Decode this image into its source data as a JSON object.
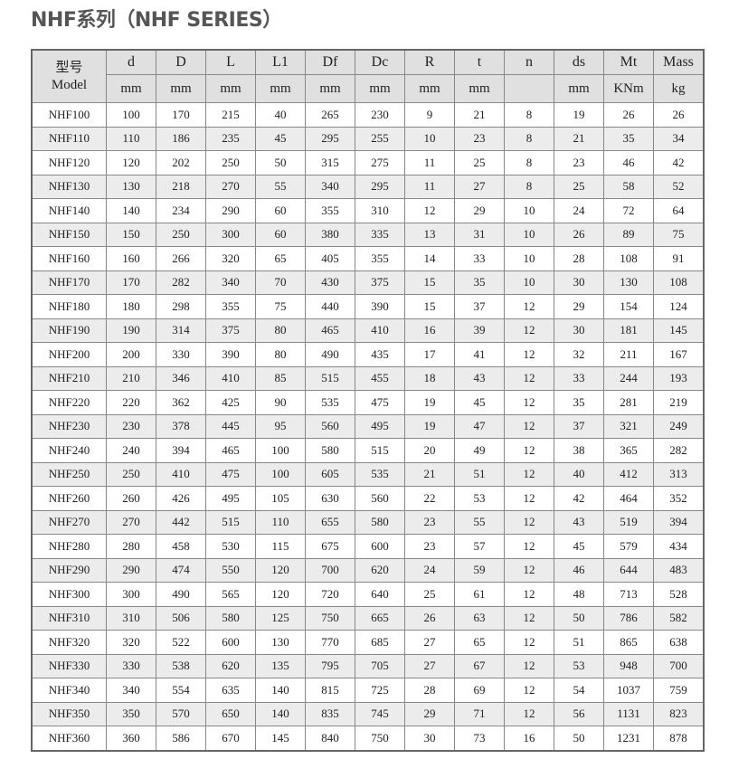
{
  "title": "NHF系列（NHF SERIES）",
  "table": {
    "model_header_cn": "型号",
    "model_header_en": "Model",
    "columns": [
      "d",
      "D",
      "L",
      "L1",
      "Df",
      "Dc",
      "R",
      "t",
      "n",
      "ds",
      "Mt",
      "Mass"
    ],
    "units": [
      "mm",
      "mm",
      "mm",
      "mm",
      "mm",
      "mm",
      "mm",
      "mm",
      "",
      "mm",
      "KNm",
      "kg"
    ],
    "rows": [
      [
        "NHF100",
        "100",
        "170",
        "215",
        "40",
        "265",
        "230",
        "9",
        "21",
        "8",
        "19",
        "26",
        "26"
      ],
      [
        "NHF110",
        "110",
        "186",
        "235",
        "45",
        "295",
        "255",
        "10",
        "23",
        "8",
        "21",
        "35",
        "34"
      ],
      [
        "NHF120",
        "120",
        "202",
        "250",
        "50",
        "315",
        "275",
        "11",
        "25",
        "8",
        "23",
        "46",
        "42"
      ],
      [
        "NHF130",
        "130",
        "218",
        "270",
        "55",
        "340",
        "295",
        "11",
        "27",
        "8",
        "25",
        "58",
        "52"
      ],
      [
        "NHF140",
        "140",
        "234",
        "290",
        "60",
        "355",
        "310",
        "12",
        "29",
        "10",
        "24",
        "72",
        "64"
      ],
      [
        "NHF150",
        "150",
        "250",
        "300",
        "60",
        "380",
        "335",
        "13",
        "31",
        "10",
        "26",
        "89",
        "75"
      ],
      [
        "NHF160",
        "160",
        "266",
        "320",
        "65",
        "405",
        "355",
        "14",
        "33",
        "10",
        "28",
        "108",
        "91"
      ],
      [
        "NHF170",
        "170",
        "282",
        "340",
        "70",
        "430",
        "375",
        "15",
        "35",
        "10",
        "30",
        "130",
        "108"
      ],
      [
        "NHF180",
        "180",
        "298",
        "355",
        "75",
        "440",
        "390",
        "15",
        "37",
        "12",
        "29",
        "154",
        "124"
      ],
      [
        "NHF190",
        "190",
        "314",
        "375",
        "80",
        "465",
        "410",
        "16",
        "39",
        "12",
        "30",
        "181",
        "145"
      ],
      [
        "NHF200",
        "200",
        "330",
        "390",
        "80",
        "490",
        "435",
        "17",
        "41",
        "12",
        "32",
        "211",
        "167"
      ],
      [
        "NHF210",
        "210",
        "346",
        "410",
        "85",
        "515",
        "455",
        "18",
        "43",
        "12",
        "33",
        "244",
        "193"
      ],
      [
        "NHF220",
        "220",
        "362",
        "425",
        "90",
        "535",
        "475",
        "19",
        "45",
        "12",
        "35",
        "281",
        "219"
      ],
      [
        "NHF230",
        "230",
        "378",
        "445",
        "95",
        "560",
        "495",
        "19",
        "47",
        "12",
        "37",
        "321",
        "249"
      ],
      [
        "NHF240",
        "240",
        "394",
        "465",
        "100",
        "580",
        "515",
        "20",
        "49",
        "12",
        "38",
        "365",
        "282"
      ],
      [
        "NHF250",
        "250",
        "410",
        "475",
        "100",
        "605",
        "535",
        "21",
        "51",
        "12",
        "40",
        "412",
        "313"
      ],
      [
        "NHF260",
        "260",
        "426",
        "495",
        "105",
        "630",
        "560",
        "22",
        "53",
        "12",
        "42",
        "464",
        "352"
      ],
      [
        "NHF270",
        "270",
        "442",
        "515",
        "110",
        "655",
        "580",
        "23",
        "55",
        "12",
        "43",
        "519",
        "394"
      ],
      [
        "NHF280",
        "280",
        "458",
        "530",
        "115",
        "675",
        "600",
        "23",
        "57",
        "12",
        "45",
        "579",
        "434"
      ],
      [
        "NHF290",
        "290",
        "474",
        "550",
        "120",
        "700",
        "620",
        "24",
        "59",
        "12",
        "46",
        "644",
        "483"
      ],
      [
        "NHF300",
        "300",
        "490",
        "565",
        "120",
        "720",
        "640",
        "25",
        "61",
        "12",
        "48",
        "713",
        "528"
      ],
      [
        "NHF310",
        "310",
        "506",
        "580",
        "125",
        "750",
        "665",
        "26",
        "63",
        "12",
        "50",
        "786",
        "582"
      ],
      [
        "NHF320",
        "320",
        "522",
        "600",
        "130",
        "770",
        "685",
        "27",
        "65",
        "12",
        "51",
        "865",
        "638"
      ],
      [
        "NHF330",
        "330",
        "538",
        "620",
        "135",
        "795",
        "705",
        "27",
        "67",
        "12",
        "53",
        "948",
        "700"
      ],
      [
        "NHF340",
        "340",
        "554",
        "635",
        "140",
        "815",
        "725",
        "28",
        "69",
        "12",
        "54",
        "1037",
        "759"
      ],
      [
        "NHF350",
        "350",
        "570",
        "650",
        "140",
        "835",
        "745",
        "29",
        "71",
        "12",
        "56",
        "1131",
        "823"
      ],
      [
        "NHF360",
        "360",
        "586",
        "670",
        "145",
        "840",
        "750",
        "30",
        "73",
        "16",
        "50",
        "1231",
        "878"
      ]
    ]
  }
}
